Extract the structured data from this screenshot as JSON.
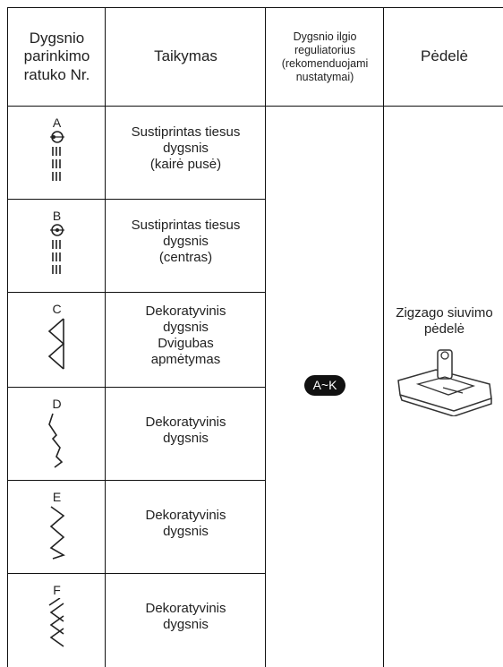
{
  "header": {
    "columns": [
      [
        "Dygsnio",
        "parinkimo",
        "ratuko Nr."
      ],
      [
        "Taikymas"
      ],
      [
        "Dygsnio ilgio",
        "reguliatorius",
        "(rekomenduojami",
        "nustatymai)"
      ],
      [
        "Pėdelė"
      ]
    ]
  },
  "rows": [
    {
      "pattern": "A",
      "application": [
        "Sustiprintas tiesus",
        "dygsnis",
        "(kairė pusė)"
      ]
    },
    {
      "pattern": "B",
      "application": [
        "Sustiprintas tiesus",
        "dygsnis",
        "(centras)"
      ]
    },
    {
      "pattern": "C",
      "application": [
        "Dekoratyvinis",
        "dygsnis",
        "Dvigubas",
        "apmėtymas"
      ]
    },
    {
      "pattern": "D",
      "application": [
        "Dekoratyvinis",
        "dygsnis"
      ]
    },
    {
      "pattern": "E",
      "application": [
        "Dekoratyvinis",
        "dygsnis"
      ]
    },
    {
      "pattern": "F",
      "application": [
        "Dekoratyvinis",
        "dygsnis"
      ]
    }
  ],
  "length_setting": "A~K",
  "foot": [
    "Zigzago siuvimo",
    "pėdelė"
  ]
}
